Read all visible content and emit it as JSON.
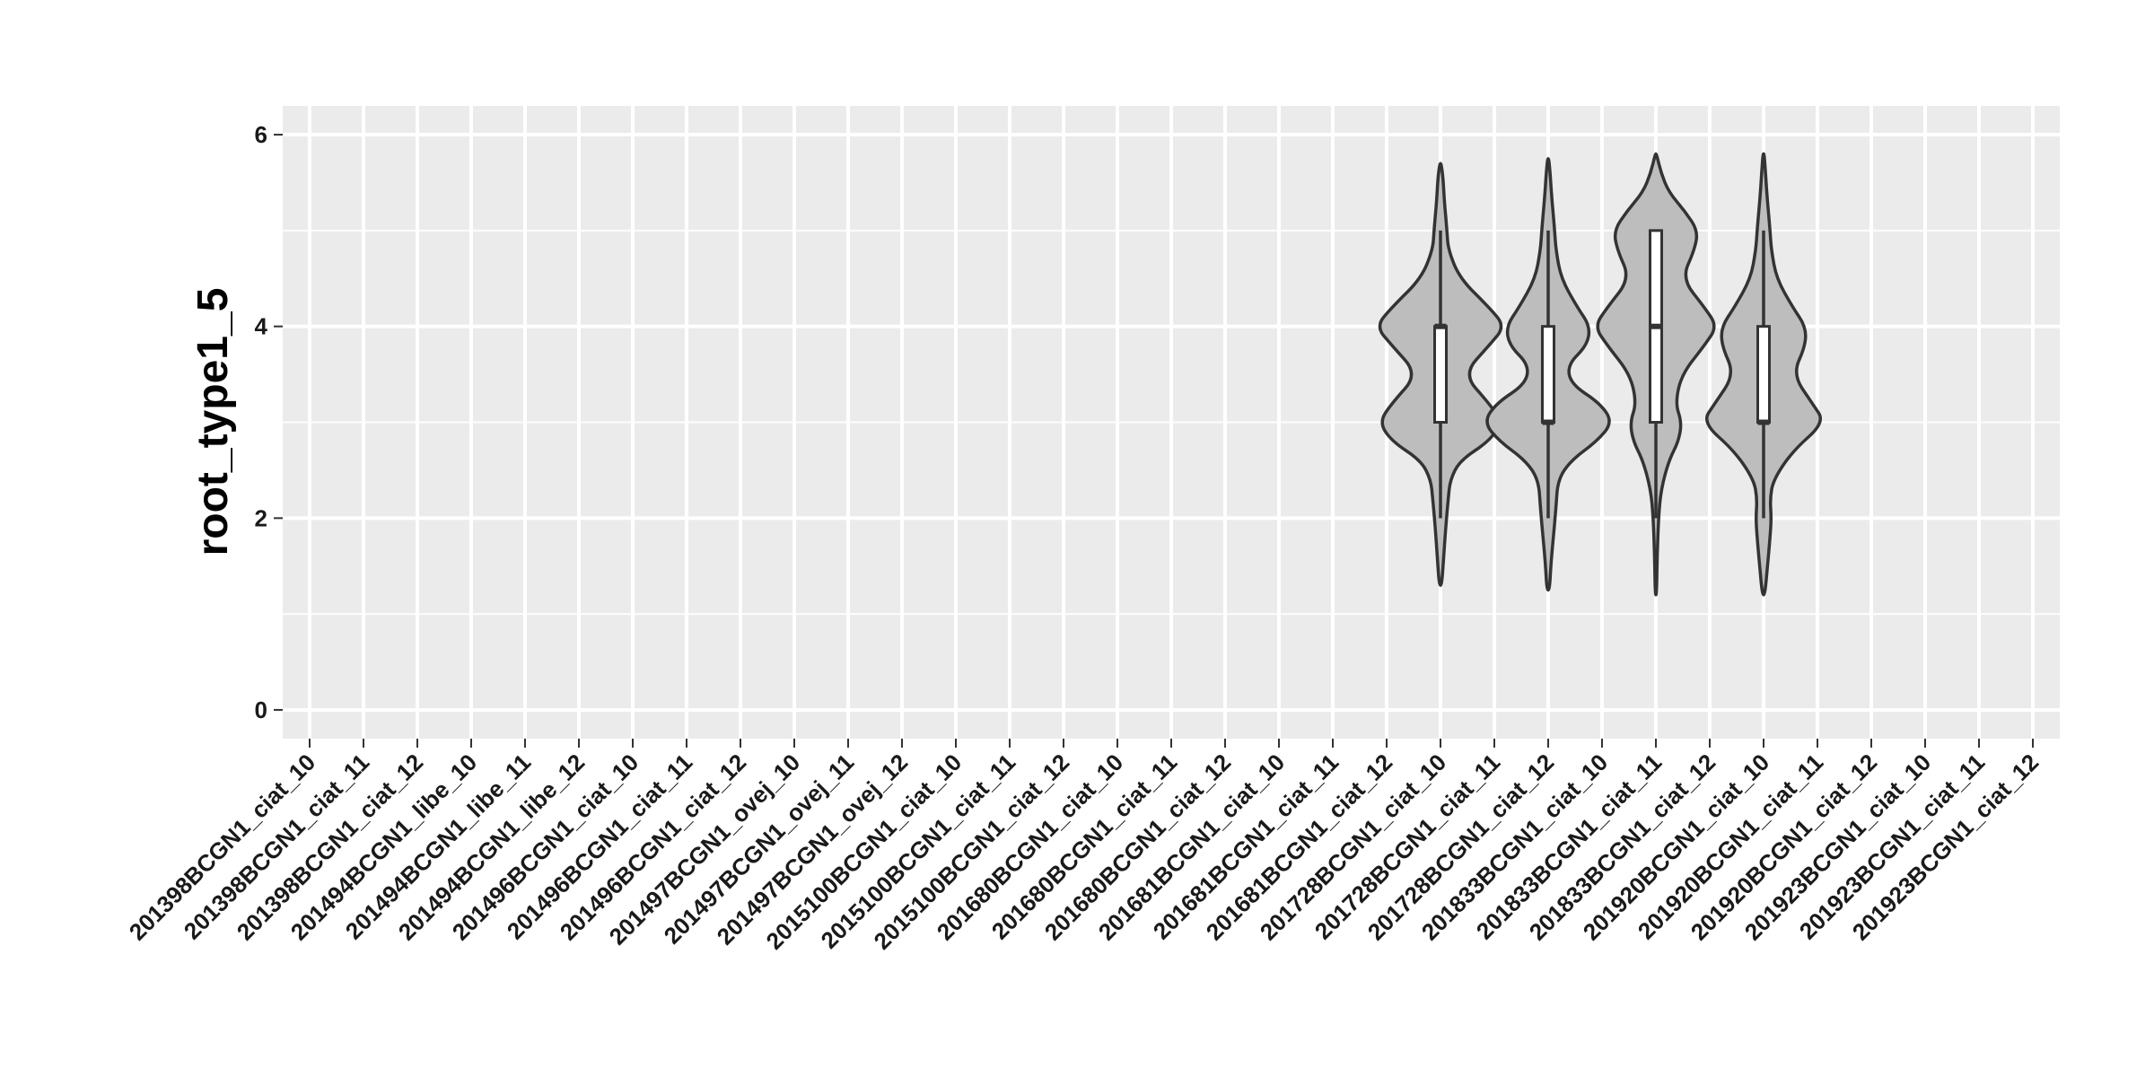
{
  "chart_data": {
    "type": "violin",
    "title": "",
    "xlabel": "",
    "ylabel": "root_type1_5",
    "ylim": [
      -0.3,
      6.3
    ],
    "yticks": [
      0,
      2,
      4,
      6
    ],
    "grid": true,
    "colors": {
      "panel": "#ebebeb",
      "grid_major": "#ffffff",
      "violin_fill": "#bdbdbd",
      "violin_stroke": "#333333",
      "box_fill": "#ffffff",
      "text": "#1a1a1a"
    },
    "categories": [
      "201398BCGN1_ciat_10",
      "201398BCGN1_ciat_11",
      "201398BCGN1_ciat_12",
      "201494BCGN1_libe_10",
      "201494BCGN1_libe_11",
      "201494BCGN1_libe_12",
      "201496BCGN1_ciat_10",
      "201496BCGN1_ciat_11",
      "201496BCGN1_ciat_12",
      "201497BCGN1_ovej_10",
      "201497BCGN1_ovej_11",
      "201497BCGN1_ovej_12",
      "2015100BCGN1_ciat_10",
      "2015100BCGN1_ciat_11",
      "2015100BCGN1_ciat_12",
      "201680BCGN1_ciat_10",
      "201680BCGN1_ciat_11",
      "201680BCGN1_ciat_12",
      "201681BCGN1_ciat_10",
      "201681BCGN1_ciat_11",
      "201681BCGN1_ciat_12",
      "201728BCGN1_ciat_10",
      "201728BCGN1_ciat_11",
      "201728BCGN1_ciat_12",
      "201833BCGN1_ciat_10",
      "201833BCGN1_ciat_11",
      "201833BCGN1_ciat_12",
      "201920BCGN1_ciat_10",
      "201920BCGN1_ciat_11",
      "201920BCGN1_ciat_12",
      "201923BCGN1_ciat_10",
      "201923BCGN1_ciat_11",
      "201923BCGN1_ciat_12"
    ],
    "violins": [
      {
        "category": "201728BCGN1_ciat_10",
        "box": {
          "whisker_low": 2,
          "q1": 3,
          "median": 4,
          "q3": 4,
          "whisker_high": 5
        },
        "density": [
          [
            1.3,
            0.02
          ],
          [
            1.6,
            0.05
          ],
          [
            1.9,
            0.08
          ],
          [
            2.2,
            0.12
          ],
          [
            2.4,
            0.15
          ],
          [
            2.6,
            0.3
          ],
          [
            2.8,
            0.75
          ],
          [
            3.0,
            0.95
          ],
          [
            3.2,
            0.75
          ],
          [
            3.5,
            0.35
          ],
          [
            3.8,
            0.75
          ],
          [
            4.0,
            1.0
          ],
          [
            4.2,
            0.75
          ],
          [
            4.5,
            0.3
          ],
          [
            4.8,
            0.12
          ],
          [
            5.0,
            0.1
          ],
          [
            5.3,
            0.06
          ],
          [
            5.55,
            0.04
          ],
          [
            5.7,
            0.01
          ]
        ]
      },
      {
        "category": "201728BCGN1_ciat_12",
        "box": {
          "whisker_low": 2,
          "q1": 3,
          "median": 3,
          "q3": 4,
          "whisker_high": 5
        },
        "density": [
          [
            1.25,
            0.02
          ],
          [
            1.5,
            0.04
          ],
          [
            1.8,
            0.08
          ],
          [
            2.1,
            0.12
          ],
          [
            2.4,
            0.15
          ],
          [
            2.6,
            0.35
          ],
          [
            2.8,
            0.75
          ],
          [
            3.0,
            1.0
          ],
          [
            3.2,
            0.8
          ],
          [
            3.4,
            0.35
          ],
          [
            3.6,
            0.3
          ],
          [
            3.8,
            0.6
          ],
          [
            4.0,
            0.65
          ],
          [
            4.2,
            0.45
          ],
          [
            4.5,
            0.2
          ],
          [
            4.8,
            0.12
          ],
          [
            5.0,
            0.1
          ],
          [
            5.3,
            0.06
          ],
          [
            5.6,
            0.03
          ],
          [
            5.75,
            0.01
          ]
        ]
      },
      {
        "category": "201833BCGN1_ciat_11",
        "box": {
          "whisker_low": 2,
          "q1": 3,
          "median": 4,
          "q3": 5,
          "whisker_high": 5
        },
        "density": [
          [
            1.2,
            0.01
          ],
          [
            1.6,
            0.02
          ],
          [
            2.0,
            0.04
          ],
          [
            2.3,
            0.08
          ],
          [
            2.6,
            0.2
          ],
          [
            2.8,
            0.35
          ],
          [
            3.0,
            0.4
          ],
          [
            3.2,
            0.3
          ],
          [
            3.5,
            0.4
          ],
          [
            3.8,
            0.75
          ],
          [
            4.0,
            0.95
          ],
          [
            4.2,
            0.75
          ],
          [
            4.5,
            0.4
          ],
          [
            4.8,
            0.6
          ],
          [
            5.0,
            0.65
          ],
          [
            5.2,
            0.45
          ],
          [
            5.4,
            0.2
          ],
          [
            5.6,
            0.08
          ],
          [
            5.8,
            0.01
          ]
        ]
      },
      {
        "category": "201920BCGN1_ciat_10",
        "box": {
          "whisker_low": 2,
          "q1": 3,
          "median": 3,
          "q3": 4,
          "whisker_high": 5
        },
        "density": [
          [
            1.2,
            0.02
          ],
          [
            1.5,
            0.06
          ],
          [
            1.8,
            0.1
          ],
          [
            2.0,
            0.12
          ],
          [
            2.2,
            0.1
          ],
          [
            2.4,
            0.15
          ],
          [
            2.7,
            0.45
          ],
          [
            3.0,
            0.95
          ],
          [
            3.2,
            0.75
          ],
          [
            3.5,
            0.45
          ],
          [
            3.8,
            0.65
          ],
          [
            4.0,
            0.65
          ],
          [
            4.2,
            0.45
          ],
          [
            4.5,
            0.2
          ],
          [
            4.8,
            0.12
          ],
          [
            5.0,
            0.1
          ],
          [
            5.3,
            0.06
          ],
          [
            5.6,
            0.03
          ],
          [
            5.8,
            0.01
          ]
        ]
      }
    ]
  }
}
